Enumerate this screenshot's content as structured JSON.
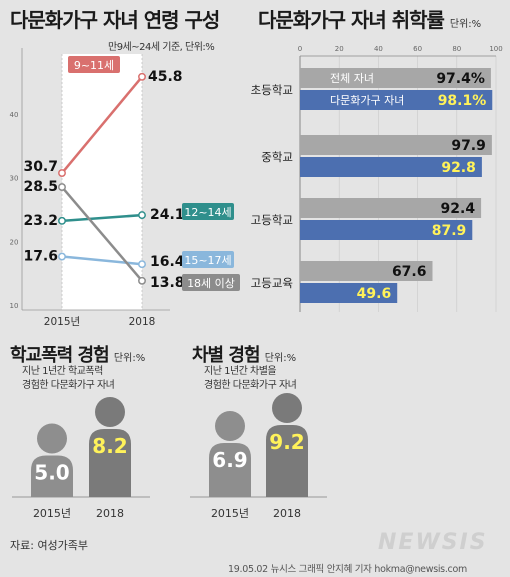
{
  "chart_data": [
    {
      "type": "line",
      "title": "다문화가구 자녀 연령 구성",
      "subtitle": "만9세~24세 기준, 단위:%",
      "categories": [
        "2015년",
        "2018"
      ],
      "ylim": [
        10,
        50
      ],
      "y_ticks": [
        "10",
        "20",
        "30",
        "40"
      ],
      "series": [
        {
          "name": "9~11세",
          "values": [
            30.7,
            45.8
          ],
          "labels": [
            "30.7",
            "45.8"
          ],
          "color": "#d9706e"
        },
        {
          "name": "12~14세",
          "values": [
            23.2,
            24.1
          ],
          "labels": [
            "23.2",
            "24.1"
          ],
          "color": "#2f8f8c"
        },
        {
          "name": "15~17세",
          "values": [
            17.6,
            16.4
          ],
          "labels": [
            "17.6",
            "16.4"
          ],
          "color": "#8ab7dc"
        },
        {
          "name": "18세 이상",
          "values": [
            28.5,
            13.8
          ],
          "labels": [
            "28.5",
            "13.8"
          ],
          "color": "#8c8c8c"
        }
      ]
    },
    {
      "type": "bar",
      "title": "다문화가구 자녀 취학률",
      "unit": "단위:%",
      "xlim": [
        0,
        100
      ],
      "x_ticks": [
        "0",
        "20",
        "40",
        "60",
        "80",
        "100"
      ],
      "categories": [
        "초등학교",
        "중학교",
        "고등학교",
        "고등교육"
      ],
      "series": [
        {
          "name": "전체 자녀",
          "values": [
            97.4,
            97.9,
            92.4,
            67.6
          ],
          "labels": [
            "97.4%",
            "97.9",
            "92.4",
            "67.6"
          ],
          "color": "#a7a7a7"
        },
        {
          "name": "다문화가구 자녀",
          "values": [
            98.1,
            92.8,
            87.9,
            49.6
          ],
          "labels": [
            "98.1%",
            "92.8",
            "87.9",
            "49.6"
          ],
          "color": "#4c6fb0",
          "label_color": "#fff25a"
        }
      ]
    },
    {
      "type": "bar",
      "title": "학교폭력 경험",
      "unit": "단위:%",
      "description": [
        "지난 1년간 학교폭력",
        "경험한 다문화가구 자녀"
      ],
      "categories": [
        "2015년",
        "2018"
      ],
      "values": [
        5.0,
        8.2
      ],
      "labels": [
        "5.0",
        "8.2"
      ]
    },
    {
      "type": "bar",
      "title": "차별 경험",
      "unit": "단위:%",
      "description": [
        "지난 1년간 차별을",
        "경험한 다문화가구 자녀"
      ],
      "categories": [
        "2015년",
        "2018"
      ],
      "values": [
        6.9,
        9.2
      ],
      "labels": [
        "6.9",
        "9.2"
      ]
    }
  ],
  "footer": {
    "source": "자료: 여성가족부",
    "credit": "19.05.02  뉴시스 그래픽 안지혜 기자  hokma@newsis.com",
    "watermark": "NEWSIS"
  }
}
